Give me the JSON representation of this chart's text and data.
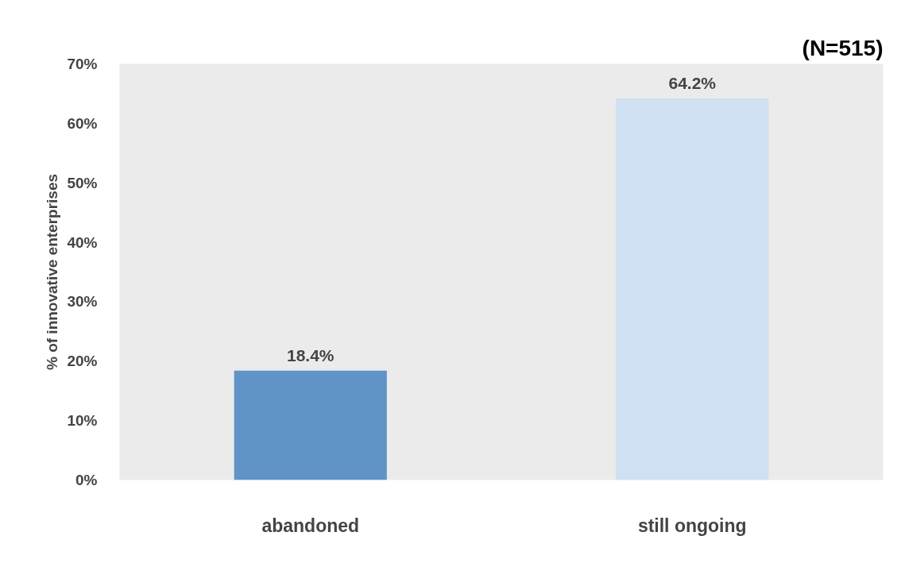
{
  "chart_data": {
    "type": "bar",
    "ylabel": "% of innovative enterprises",
    "categories": [
      "abandoned",
      "still ongoing"
    ],
    "values": [
      18.4,
      64.2
    ],
    "colors": [
      "#6094c8",
      "#cfe0f3"
    ],
    "value_labels": [
      "18.4%",
      "64.2%"
    ],
    "ylim": [
      0,
      70
    ],
    "yticks": [
      {
        "value": 0,
        "label": "0%"
      },
      {
        "value": 10,
        "label": "10%"
      },
      {
        "value": 20,
        "label": "20%"
      },
      {
        "value": 30,
        "label": "30%"
      },
      {
        "value": 40,
        "label": "40%"
      },
      {
        "value": 50,
        "label": "50%"
      },
      {
        "value": 60,
        "label": "60%"
      },
      {
        "value": 70,
        "label": "70%"
      }
    ],
    "grid": false,
    "annotations": [
      "(N=515)"
    ]
  }
}
